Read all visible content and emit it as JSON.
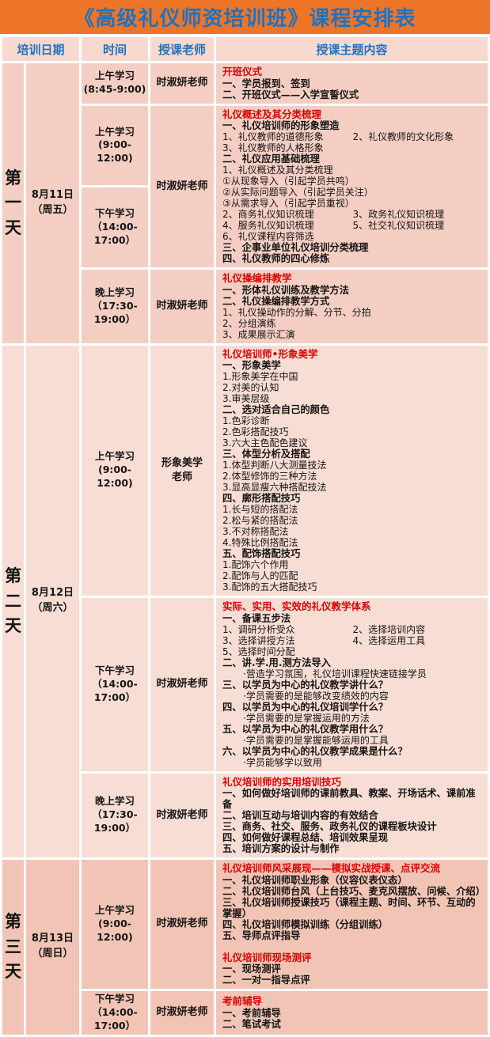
{
  "title": "《高级礼仪师资培训班》课程安排表",
  "header": {
    "date": "培训日期",
    "time": "时间",
    "teacher": "授课老师",
    "content": "授课主题内容"
  },
  "colors": {
    "title_bg": "#ED7528",
    "title_text": "#1F72BF",
    "header_text": "#1F72BF",
    "header_bg": "#F8D9D0",
    "day1_bg": "#F4CEC3",
    "day2_bg": "#F8DDD4",
    "day3_bg": "#F1C4B5",
    "red_heading": "#DE0000",
    "body_text": "#141414",
    "gridline": "#FFFFFF"
  },
  "days": [
    {
      "label": "第一天",
      "date": "8月11日\n（周五）",
      "rows": [
        {
          "time": "上午学习\n(8:45-9:00)",
          "teacher": "时淑妍老师",
          "blocks": [
            {
              "heading": "开班仪式",
              "lines": [
                {
                  "t": "一、学员报到、签到",
                  "s": "h"
                },
                {
                  "t": "二、开班仪式——入学宣誓仪式",
                  "s": "h"
                }
              ]
            }
          ]
        },
        {
          "times": [
            "上午学习\n(9:00-12:00)",
            "下午学习\n（14:00-\n17:00）"
          ],
          "teacher": "时淑妍老师",
          "blocks": [
            {
              "heading": "礼仪概述及其分类梳理",
              "lines": [
                {
                  "t": "一、礼仪培训师的形象塑造",
                  "s": "h"
                },
                {
                  "t": "1、礼仪教师的道德形象",
                  "t2": "2、礼仪教师的文化形象",
                  "s": "n"
                },
                {
                  "t": "3、礼仪教师的人格形象",
                  "s": "n"
                },
                {
                  "t": "二、礼仪应用基础梳理",
                  "s": "h"
                },
                {
                  "t": "1、礼仪概述及其分类梳理",
                  "s": "n"
                },
                {
                  "t": "①从现象导入（引起学员共鸣）",
                  "s": "n"
                },
                {
                  "t": "②从实际问题导入（引起学员关注）",
                  "s": "n"
                },
                {
                  "t": "③从需求导入（引起学员重视）",
                  "s": "n"
                },
                {
                  "t": "2、商务礼仪知识梳理",
                  "t2": "3、政务礼仪知识梳理",
                  "s": "n"
                },
                {
                  "t": "4、服务礼仪知识梳理",
                  "t2": "5、社交礼仪知识梳理",
                  "s": "n"
                },
                {
                  "t": "6、礼仪课程内容筛选",
                  "s": "n"
                },
                {
                  "t": "三、企事业单位礼仪培训分类梳理",
                  "s": "h"
                },
                {
                  "t": "四、礼仪教师的四心修炼",
                  "s": "h"
                }
              ]
            }
          ]
        },
        {
          "time": "晚上学习\n（17:30-\n19:00）",
          "teacher": "时淑妍老师",
          "blocks": [
            {
              "heading": "礼仪操编排教学",
              "lines": [
                {
                  "t": "一、形体礼仪训练及教学方法",
                  "s": "h"
                },
                {
                  "t": "二、礼仪操编排教学方式",
                  "s": "h"
                },
                {
                  "t": "1、礼仪操动作的分解、分节、分拍",
                  "s": "n"
                },
                {
                  "t": "2、分组演练",
                  "s": "n"
                },
                {
                  "t": "3、成果展示汇演",
                  "s": "n"
                }
              ]
            }
          ]
        }
      ]
    },
    {
      "label": "第二天",
      "date": "8月12日\n（周六）",
      "rows": [
        {
          "time": "上午学习\n(9:00-12:00)",
          "teacher": "形象美学\n老师",
          "blocks": [
            {
              "heading": "礼仪培训师•形象美学",
              "lines": [
                {
                  "t": "一、形象美学",
                  "s": "h"
                },
                {
                  "t": "1.形象美学在中国",
                  "s": "n"
                },
                {
                  "t": "2.对美的认知",
                  "s": "n"
                },
                {
                  "t": "3.审美层级",
                  "s": "n"
                },
                {
                  "t": "二、选对适合自己的颜色",
                  "s": "h"
                },
                {
                  "t": "1.色彩诊断",
                  "s": "n"
                },
                {
                  "t": "2.色彩搭配技巧",
                  "s": "n"
                },
                {
                  "t": "3.六大主色配色建议",
                  "s": "n"
                },
                {
                  "t": "三、体型分析及搭配",
                  "s": "h"
                },
                {
                  "t": "1.体型判断八大测量技法",
                  "s": "n"
                },
                {
                  "t": "2.体型修饰的三种方法",
                  "s": "n"
                },
                {
                  "t": "3.显高显瘦六种搭配技法",
                  "s": "n"
                },
                {
                  "t": "四、廓形搭配技巧",
                  "s": "h"
                },
                {
                  "t": "1.长与短的搭配法",
                  "s": "n"
                },
                {
                  "t": "2.松与紧的搭配法",
                  "s": "n"
                },
                {
                  "t": "3.不对称搭配法",
                  "s": "n"
                },
                {
                  "t": "4.特殊比例搭配法",
                  "s": "n"
                },
                {
                  "t": "五、配饰搭配技巧",
                  "s": "h"
                },
                {
                  "t": "1.配饰六个作用",
                  "s": "n"
                },
                {
                  "t": "2.配饰与人的匹配",
                  "s": "n"
                },
                {
                  "t": "3.配饰的五大搭配技巧",
                  "s": "n"
                }
              ]
            }
          ]
        },
        {
          "time": "下午学习\n（14:00-\n17:00）",
          "teacher": "时淑妍老师",
          "blocks": [
            {
              "heading": "实际、实用、实效的礼仪教学体系",
              "lines": [
                {
                  "t": "一、备课五步法",
                  "s": "h"
                },
                {
                  "t": "1、调研分析受众",
                  "t2": "2、选择培训内容",
                  "s": "n"
                },
                {
                  "t": "3、选择讲授方法",
                  "t2": "4、选择运用工具",
                  "s": "n"
                },
                {
                  "t": "5、选择时间分配",
                  "s": "n"
                },
                {
                  "t": "二、讲.学.用.测方法导入",
                  "s": "h"
                },
                {
                  "t": "·营造学习氛围，礼仪培训课程快速链接学员",
                  "s": "i"
                },
                {
                  "t": "三、以学员为中心的礼仪教学讲什么？",
                  "s": "h"
                },
                {
                  "t": "·学员需要的是能够改变绩效的内容",
                  "s": "i"
                },
                {
                  "t": "四、以学员为中心的礼仪培训学什么？",
                  "s": "h"
                },
                {
                  "t": "·学员需要的是掌握运用的方法",
                  "s": "i"
                },
                {
                  "t": "五、以学员为中心的礼仪教学用什么？",
                  "s": "h"
                },
                {
                  "t": "·学员需要的是掌握能够运用的工具",
                  "s": "i"
                },
                {
                  "t": "六、以学员为中心的礼仪教学成果是什么？",
                  "s": "h"
                },
                {
                  "t": "·学员能够学以致用",
                  "s": "i"
                }
              ]
            }
          ]
        },
        {
          "time": "晚上学习\n（17:30-\n19:00）",
          "teacher": "时淑妍老师",
          "blocks": [
            {
              "heading": "礼仪培训师的实用培训技巧",
              "lines": [
                {
                  "t": "一、如何做好培训师的课前教具、教案、开场话术、课前准备",
                  "s": "h"
                },
                {
                  "t": "二、培训互动与培训内容的有效结合",
                  "s": "h"
                },
                {
                  "t": "三、商务、社交、服务、政务礼仪的课程板块设计",
                  "s": "h"
                },
                {
                  "t": "四、如何做好课程总结、培训效果呈现",
                  "s": "h"
                },
                {
                  "t": "五、培训方案的设计与制作",
                  "s": "h"
                }
              ]
            }
          ]
        }
      ]
    },
    {
      "label": "第三天",
      "date": "8月13日\n（周日）",
      "rows": [
        {
          "time": "上午学习\n(9:00-12:00)",
          "teacher": "时淑妍老师",
          "blocks": [
            {
              "heading": "礼仪培训师风采展现——模拟实战授课、点评交流",
              "lines": [
                {
                  "t": "一、礼仪培训师职业形象（仪容仪表仪态）",
                  "s": "h"
                },
                {
                  "t": "二、礼仪培训师台风（上台技巧、麦克风摆放、问候、介绍）",
                  "s": "h"
                },
                {
                  "t": "三、礼仪培训师授课技巧（课程主题、时间、环节、互动的掌握）",
                  "s": "h"
                },
                {
                  "t": "四、礼仪培训师模拟训练（分组训练）",
                  "s": "h"
                },
                {
                  "t": "五、导师点评指导",
                  "s": "h"
                }
              ]
            },
            {
              "heading": "礼仪培训师现场测评",
              "lines": [
                {
                  "t": "一、现场测评",
                  "s": "h"
                },
                {
                  "t": "二、一对一指导点评",
                  "s": "h"
                }
              ]
            }
          ]
        },
        {
          "time": "下午学习\n（14:00-\n17:00）",
          "teacher": "时淑妍老师",
          "blocks": [
            {
              "heading": "考前辅导",
              "lines": [
                {
                  "t": "一、考前辅导",
                  "s": "h"
                },
                {
                  "t": "二、笔试考试",
                  "s": "h"
                }
              ]
            }
          ]
        }
      ]
    }
  ]
}
